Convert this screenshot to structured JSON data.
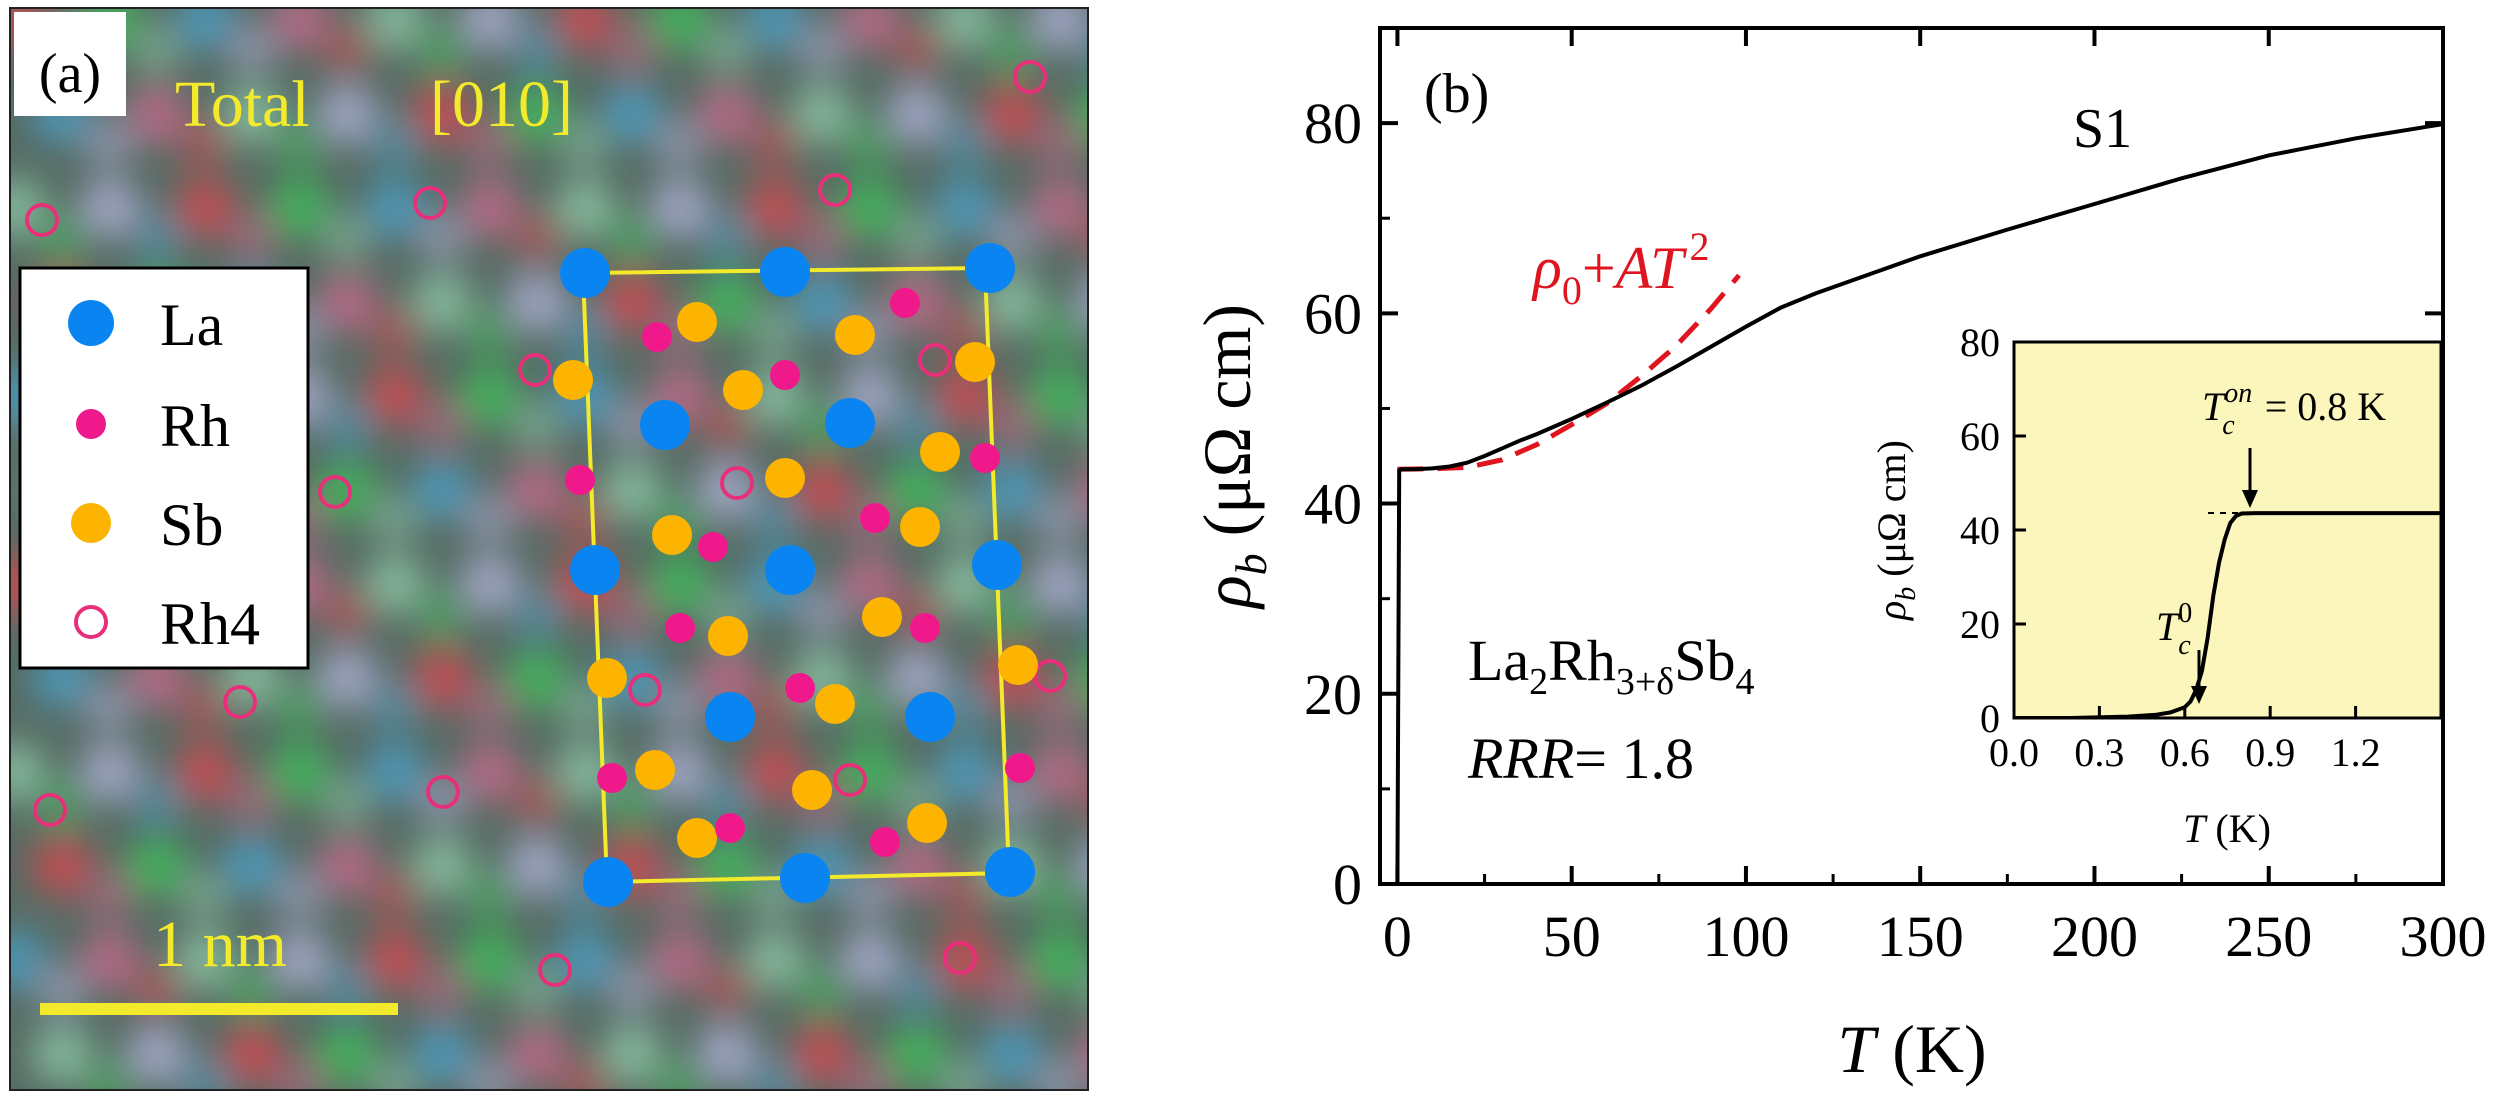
{
  "panel_a": {
    "label": "(a)",
    "title": "Total",
    "direction": "[010]",
    "scale_bar": "1 nm",
    "legend": [
      {
        "label": "La",
        "icon": "filled-blue-circle",
        "color": "#0a84f0"
      },
      {
        "label": "Rh",
        "icon": "filled-magenta-dot",
        "color": "#f0198c"
      },
      {
        "label": "Sb",
        "icon": "filled-orange-circle",
        "color": "#fcb400"
      },
      {
        "label": "Rh4",
        "icon": "open-magenta-circle",
        "color": "#e8307a"
      }
    ],
    "colors": {
      "cell_outline": "#f2ea2a",
      "text": "#f2ea2a"
    }
  },
  "panel_b": {
    "label": "(b)",
    "sample": "S1",
    "formula": {
      "base": "La",
      "s1": "2",
      "mid": "Rh",
      "s2": "3+δ",
      "end": "Sb",
      "s3": "4"
    },
    "rrr_label": "RRR",
    "rrr_value": "= 1.8",
    "fit_label": {
      "rho": "ρ",
      "sub": "0",
      "plus": "+",
      "A": "A",
      "T": "T",
      "exp": "2"
    },
    "ylabel": {
      "rho": "ρ",
      "sub": "b",
      "unit": " (μΩ cm)"
    },
    "xlabel": {
      "T": "T",
      "unit": " (K)"
    },
    "inset": {
      "ylabel": {
        "rho": "ρ",
        "sub": "b",
        "unit": " (μΩ cm)"
      },
      "xlabel": {
        "T": "T",
        "unit": " (K)"
      },
      "tc_on": {
        "T": "T",
        "sub": "c",
        "sup": "on",
        "value": " = 0.8 K"
      },
      "tc_zero": {
        "T": "T",
        "sub": "c",
        "sup": "0"
      }
    },
    "colors": {
      "data": "#000000",
      "fit": "#e0141e",
      "inset_bg": "#fbf6bb"
    }
  },
  "chart_data": [
    {
      "type": "line",
      "xlabel": "T (K)",
      "ylabel": "ρb (μΩ cm)",
      "xlim": [
        -5,
        300
      ],
      "ylim": [
        0,
        90
      ],
      "xticks": [
        0,
        50,
        100,
        150,
        200,
        250,
        300
      ],
      "yticks": [
        0,
        20,
        40,
        60,
        80
      ],
      "series": [
        {
          "name": "S1",
          "style": "solid",
          "x": [
            0,
            0.5,
            1,
            3,
            5,
            10,
            15,
            20,
            25,
            30,
            35,
            40,
            45,
            50,
            60,
            70,
            80,
            90,
            100,
            110,
            120,
            130,
            140,
            150,
            175,
            200,
            225,
            250,
            275,
            300
          ],
          "y": [
            0,
            43.5,
            43.6,
            43.6,
            43.6,
            43.7,
            43.9,
            44.3,
            45.0,
            45.8,
            46.6,
            47.3,
            48.1,
            48.9,
            50.6,
            52.4,
            54.4,
            56.5,
            58.6,
            60.6,
            62.1,
            63.4,
            64.7,
            66.0,
            68.8,
            71.5,
            74.2,
            76.6,
            78.4,
            79.9
          ]
        },
        {
          "name": "ρ0+AT2",
          "style": "dashed",
          "x": [
            0,
            10,
            20,
            30,
            40,
            50,
            60,
            70,
            80,
            90,
            98
          ],
          "y": [
            43.6,
            43.65,
            43.8,
            44.6,
            46.2,
            48.3,
            50.5,
            53.4,
            56.6,
            60.5,
            64.0
          ]
        }
      ]
    },
    {
      "type": "line",
      "xlabel": "T (K)",
      "ylabel": "ρb (μΩ cm)",
      "xlim": [
        0,
        1.5
      ],
      "ylim": [
        0,
        80
      ],
      "xticks": [
        0.0,
        0.3,
        0.6,
        0.9,
        1.2
      ],
      "yticks": [
        0,
        20,
        40,
        60,
        80
      ],
      "series": [
        {
          "name": "inset",
          "x": [
            0.0,
            0.2,
            0.4,
            0.5,
            0.55,
            0.6,
            0.62,
            0.64,
            0.66,
            0.68,
            0.7,
            0.72,
            0.74,
            0.76,
            0.78,
            0.8,
            0.85,
            0.9,
            1.0,
            1.2,
            1.5
          ],
          "y": [
            0,
            0,
            0.3,
            0.7,
            1.2,
            2.3,
            3.5,
            6,
            10,
            17,
            26,
            33,
            38,
            41.5,
            43,
            43.5,
            43.6,
            43.6,
            43.6,
            43.6,
            43.6
          ]
        }
      ]
    }
  ]
}
